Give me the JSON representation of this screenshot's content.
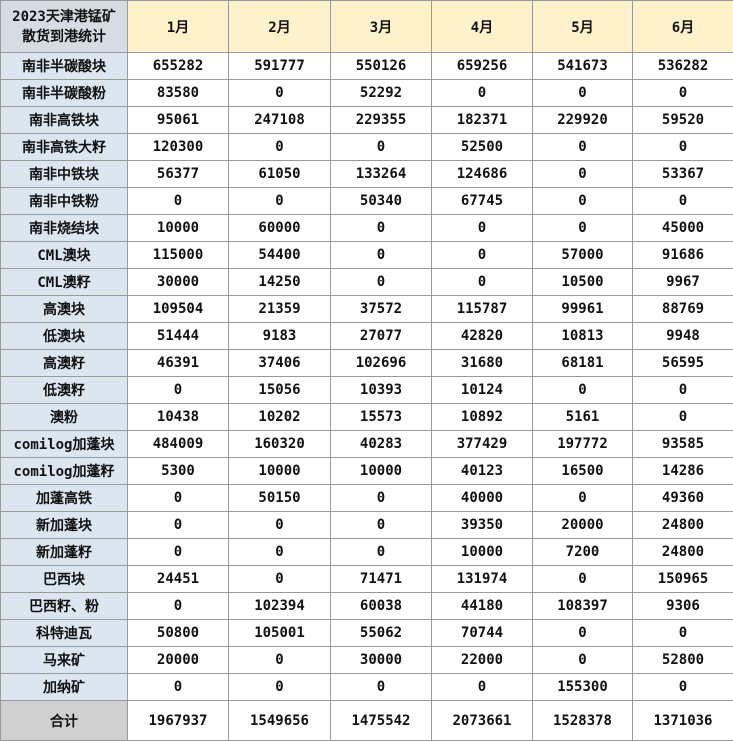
{
  "table": {
    "corner": [
      "2023天津港锰矿",
      "散货到港统计"
    ],
    "columns": [
      "1月",
      "2月",
      "3月",
      "4月",
      "5月",
      "6月"
    ],
    "rows": [
      [
        "南非半碳酸块",
        655282,
        591777,
        550126,
        659256,
        541673,
        536282
      ],
      [
        "南非半碳酸粉",
        83580,
        0,
        52292,
        0,
        0,
        0
      ],
      [
        "南非高铁块",
        95061,
        247108,
        229355,
        182371,
        229920,
        59520
      ],
      [
        "南非高铁大籽",
        120300,
        0,
        0,
        52500,
        0,
        0
      ],
      [
        "南非中铁块",
        56377,
        61050,
        133264,
        124686,
        0,
        53367
      ],
      [
        "南非中铁粉",
        0,
        0,
        50340,
        67745,
        0,
        0
      ],
      [
        "南非烧结块",
        10000,
        60000,
        0,
        0,
        0,
        45000
      ],
      [
        "CML澳块",
        115000,
        54400,
        0,
        0,
        57000,
        91686
      ],
      [
        "CML澳籽",
        30000,
        14250,
        0,
        0,
        10500,
        9967
      ],
      [
        "高澳块",
        109504,
        21359,
        37572,
        115787,
        99961,
        88769
      ],
      [
        "低澳块",
        51444,
        9183,
        27077,
        42820,
        10813,
        9948
      ],
      [
        "高澳籽",
        46391,
        37406,
        102696,
        31680,
        68181,
        56595
      ],
      [
        "低澳籽",
        0,
        15056,
        10393,
        10124,
        0,
        0
      ],
      [
        "澳粉",
        10438,
        10202,
        15573,
        10892,
        5161,
        0
      ],
      [
        "comilog加蓬块",
        484009,
        160320,
        40283,
        377429,
        197772,
        93585
      ],
      [
        "comilog加蓬籽",
        5300,
        10000,
        10000,
        40123,
        16500,
        14286
      ],
      [
        "加蓬高铁",
        0,
        50150,
        0,
        40000,
        0,
        49360
      ],
      [
        "新加蓬块",
        0,
        0,
        0,
        39350,
        20000,
        24800
      ],
      [
        "新加蓬籽",
        0,
        0,
        0,
        10000,
        7200,
        24800
      ],
      [
        "巴西块",
        24451,
        0,
        71471,
        131974,
        0,
        150965
      ],
      [
        "巴西籽、粉",
        0,
        102394,
        60038,
        44180,
        108397,
        9306
      ],
      [
        "科特迪瓦",
        50800,
        105001,
        55062,
        70744,
        0,
        0
      ],
      [
        "马来矿",
        20000,
        0,
        30000,
        22000,
        0,
        52800
      ],
      [
        "加纳矿",
        0,
        0,
        0,
        0,
        155300,
        0
      ]
    ],
    "total": [
      "合计",
      1967937,
      1549656,
      1475542,
      2073661,
      1528378,
      1371036
    ]
  }
}
